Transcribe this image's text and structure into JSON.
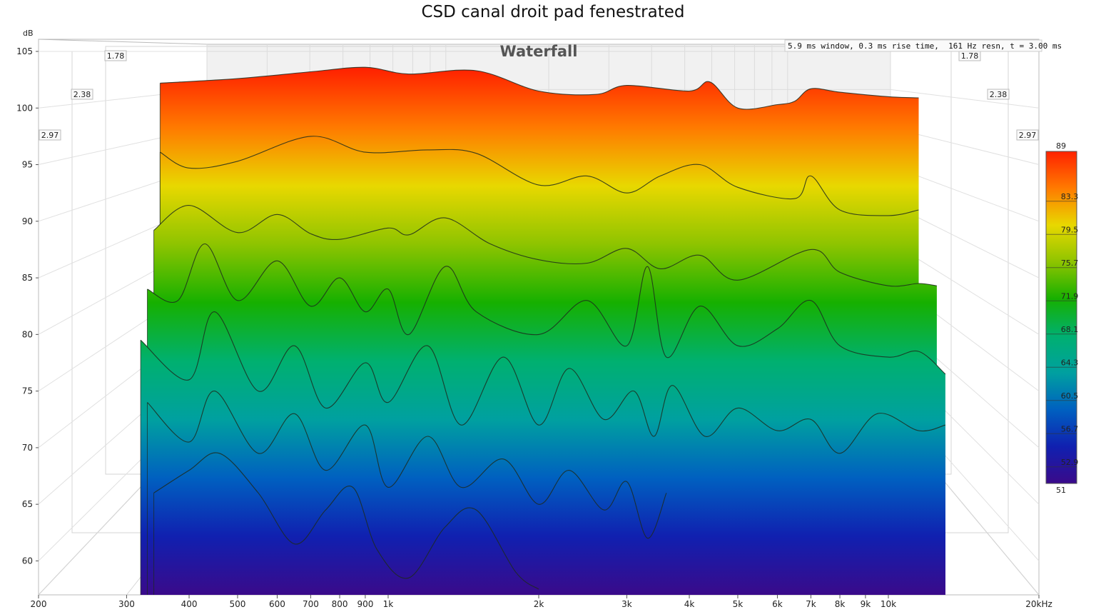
{
  "chart_data": {
    "type": "area",
    "title": "CSD canal droit pad fenestrated",
    "subtitle": "Waterfall",
    "annotation": "5.9 ms window, 0.3 ms rise time,  161 Hz resn, t = 3.00 ms",
    "ylabel": "dB",
    "xscale": "log",
    "xlim": [
      200,
      20000
    ],
    "ylim": [
      57,
      106
    ],
    "x_ticks": [
      {
        "value": 200,
        "label": "200"
      },
      {
        "value": 300,
        "label": "300"
      },
      {
        "value": 400,
        "label": "400"
      },
      {
        "value": 500,
        "label": "500"
      },
      {
        "value": 600,
        "label": "600"
      },
      {
        "value": 700,
        "label": "700"
      },
      {
        "value": 800,
        "label": "800"
      },
      {
        "value": 900,
        "label": "900"
      },
      {
        "value": 1000,
        "label": "1k"
      },
      {
        "value": 2000,
        "label": "2k"
      },
      {
        "value": 3000,
        "label": "3k"
      },
      {
        "value": 4000,
        "label": "4k"
      },
      {
        "value": 5000,
        "label": "5k"
      },
      {
        "value": 6000,
        "label": "6k"
      },
      {
        "value": 7000,
        "label": "7k"
      },
      {
        "value": 8000,
        "label": "8k"
      },
      {
        "value": 9000,
        "label": "9k"
      },
      {
        "value": 10000,
        "label": "10k"
      },
      {
        "value": 20000,
        "label": "20kHz"
      }
    ],
    "y_ticks": [
      60,
      65,
      70,
      75,
      80,
      85,
      90,
      95,
      100,
      105
    ],
    "time_labels_ms": [
      "1.78",
      "2.38",
      "2.97"
    ],
    "colorbar": {
      "range": [
        51,
        89
      ],
      "ticks": [
        "89",
        "83.3",
        "79.5",
        "75.7",
        "71.9",
        "68.1",
        "64.3",
        "60.5",
        "56.7",
        "52.9",
        "51"
      ],
      "colors": [
        "#ff2200",
        "#ff7a00",
        "#e8d800",
        "#8ec400",
        "#16b000",
        "#00b070",
        "#00a0a0",
        "#0060c0",
        "#1020b0",
        "#3a0a8a"
      ]
    },
    "series": [
      {
        "values": [
          [
            350,
            102.2
          ],
          [
            500,
            102.6
          ],
          [
            700,
            103.2
          ],
          [
            900,
            103.6
          ],
          [
            1100,
            103.0
          ],
          [
            1500,
            103.3
          ],
          [
            2000,
            101.5
          ],
          [
            2600,
            101.2
          ],
          [
            3000,
            102.0
          ],
          [
            4000,
            101.5
          ],
          [
            4400,
            102.3
          ],
          [
            5000,
            100.0
          ],
          [
            6000,
            100.3
          ],
          [
            6500,
            100.6
          ],
          [
            7000,
            101.7
          ],
          [
            8000,
            101.4
          ],
          [
            10000,
            101.0
          ],
          [
            11500,
            100.9
          ]
        ],
        "floor": 57
      },
      {
        "values": [
          [
            350,
            96.1
          ],
          [
            400,
            94.7
          ],
          [
            500,
            95.3
          ],
          [
            700,
            97.5
          ],
          [
            900,
            96.1
          ],
          [
            1200,
            96.3
          ],
          [
            1500,
            96.0
          ],
          [
            2000,
            93.2
          ],
          [
            2500,
            94.0
          ],
          [
            3000,
            92.5
          ],
          [
            3500,
            94.0
          ],
          [
            4200,
            95.0
          ],
          [
            5000,
            93.0
          ],
          [
            6500,
            92.0
          ],
          [
            7000,
            94.0
          ],
          [
            8000,
            91.0
          ],
          [
            10000,
            90.5
          ],
          [
            11500,
            91.0
          ]
        ],
        "floor": 57
      },
      {
        "values": [
          [
            340,
            89.2
          ],
          [
            400,
            91.4
          ],
          [
            500,
            89.0
          ],
          [
            600,
            90.6
          ],
          [
            700,
            88.9
          ],
          [
            800,
            88.4
          ],
          [
            1000,
            89.4
          ],
          [
            1100,
            88.8
          ],
          [
            1300,
            90.3
          ],
          [
            1600,
            88.0
          ],
          [
            2000,
            86.6
          ],
          [
            2500,
            86.3
          ],
          [
            3000,
            87.6
          ],
          [
            3500,
            85.8
          ],
          [
            4200,
            87.0
          ],
          [
            5000,
            84.8
          ],
          [
            7000,
            87.5
          ],
          [
            8000,
            85.5
          ],
          [
            10000,
            84.3
          ],
          [
            11500,
            84.5
          ],
          [
            12500,
            84.3
          ]
        ],
        "floor": 57
      },
      {
        "values": [
          [
            330,
            84.0
          ],
          [
            380,
            83.0
          ],
          [
            430,
            88.0
          ],
          [
            500,
            83.0
          ],
          [
            600,
            86.5
          ],
          [
            700,
            82.5
          ],
          [
            800,
            85.0
          ],
          [
            900,
            82.0
          ],
          [
            1000,
            84.0
          ],
          [
            1100,
            80.0
          ],
          [
            1300,
            86.0
          ],
          [
            1500,
            82.0
          ],
          [
            2000,
            80.0
          ],
          [
            2500,
            83.0
          ],
          [
            3000,
            79.0
          ],
          [
            3300,
            86.0
          ],
          [
            3600,
            78.0
          ],
          [
            4200,
            82.5
          ],
          [
            5000,
            79.0
          ],
          [
            6000,
            80.5
          ],
          [
            7000,
            83.0
          ],
          [
            8000,
            79.0
          ],
          [
            10000,
            78.0
          ],
          [
            11500,
            78.5
          ],
          [
            13000,
            76.5
          ]
        ],
        "floor": 57
      },
      {
        "values": [
          [
            320,
            79.5
          ],
          [
            400,
            76.0
          ],
          [
            450,
            82.0
          ],
          [
            550,
            75.0
          ],
          [
            650,
            79.0
          ],
          [
            750,
            73.5
          ],
          [
            900,
            77.5
          ],
          [
            1000,
            74.0
          ],
          [
            1200,
            79.0
          ],
          [
            1400,
            72.0
          ],
          [
            1700,
            78.0
          ],
          [
            2000,
            72.0
          ],
          [
            2300,
            77.0
          ],
          [
            2700,
            72.5
          ],
          [
            3100,
            75.0
          ],
          [
            3400,
            71.0
          ],
          [
            3700,
            75.5
          ],
          [
            4300,
            71.0
          ],
          [
            5000,
            73.5
          ],
          [
            6000,
            71.5
          ],
          [
            7000,
            72.5
          ],
          [
            8000,
            69.5
          ],
          [
            9500,
            73.0
          ],
          [
            11500,
            71.5
          ],
          [
            13000,
            72.0
          ]
        ],
        "floor": 57
      },
      {
        "values": [
          [
            330,
            74.0
          ],
          [
            400,
            70.5
          ],
          [
            450,
            75.0
          ],
          [
            550,
            69.5
          ],
          [
            650,
            73.0
          ],
          [
            750,
            68.0
          ],
          [
            900,
            72.0
          ],
          [
            1000,
            66.5
          ],
          [
            1200,
            71.0
          ],
          [
            1400,
            66.5
          ],
          [
            1700,
            69.0
          ],
          [
            2000,
            65.0
          ],
          [
            2300,
            68.0
          ],
          [
            2700,
            64.5
          ],
          [
            3000,
            67.0
          ],
          [
            3300,
            62.0
          ],
          [
            3600,
            66.0
          ]
        ],
        "floor": 57
      },
      {
        "values": [
          [
            340,
            66.0
          ],
          [
            400,
            68.0
          ],
          [
            460,
            69.5
          ],
          [
            550,
            66.0
          ],
          [
            650,
            61.5
          ],
          [
            750,
            64.5
          ],
          [
            850,
            66.5
          ],
          [
            950,
            61.0
          ],
          [
            1100,
            58.5
          ],
          [
            1300,
            63.0
          ],
          [
            1500,
            64.5
          ],
          [
            1800,
            59.0
          ],
          [
            2000,
            57.5
          ]
        ],
        "floor": 57
      }
    ]
  }
}
